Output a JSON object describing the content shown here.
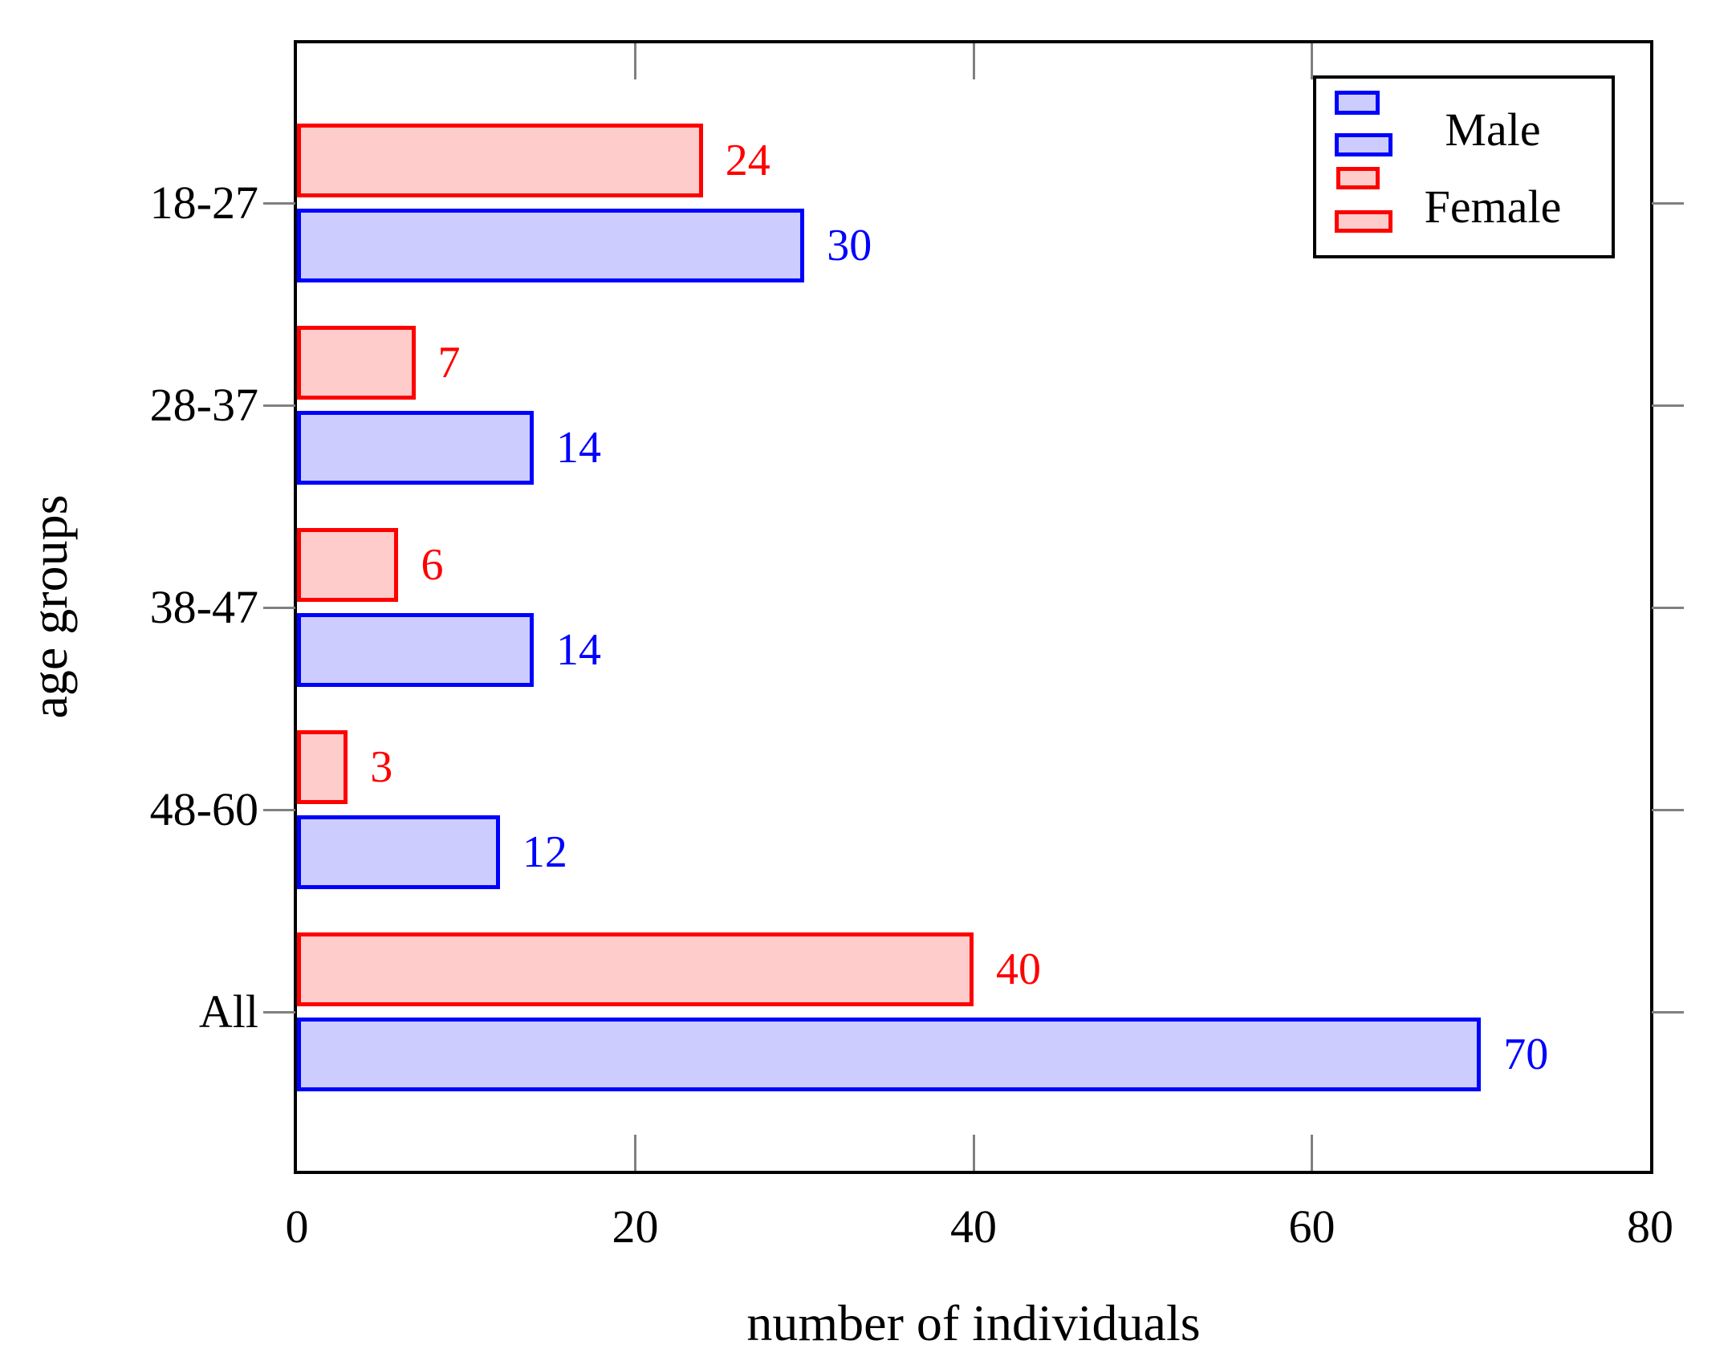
{
  "chart_data": {
    "type": "bar",
    "orientation": "horizontal",
    "title": "",
    "xlabel": "number of individuals",
    "ylabel": "age groups",
    "categories": [
      "18-27",
      "28-37",
      "38-47",
      "48-60",
      "All"
    ],
    "series": [
      {
        "name": "Male",
        "line_color": "#0000ff",
        "fill_color": "#ccccff",
        "values": [
          30,
          14,
          14,
          12,
          70
        ],
        "bar_labels": [
          "30",
          "14",
          "14",
          "12",
          "70"
        ]
      },
      {
        "name": "Female",
        "line_color": "#ff0000",
        "fill_color": "#ffcccc",
        "values": [
          24,
          7,
          6,
          3,
          40
        ],
        "bar_labels": [
          "24",
          "7",
          "6",
          "3",
          "40"
        ]
      }
    ],
    "xticks": [
      0,
      20,
      40,
      60,
      80
    ],
    "xtick_labels": [
      "0",
      "20",
      "40",
      "60",
      "80"
    ],
    "xlim": [
      0,
      80
    ],
    "grid": false,
    "legend_position": "top-right",
    "legend_entries": [
      "Male",
      "Female"
    ]
  },
  "colors": {
    "frame": "#000000",
    "tick": "#808080",
    "text": "#000000",
    "background": "#ffffff"
  }
}
